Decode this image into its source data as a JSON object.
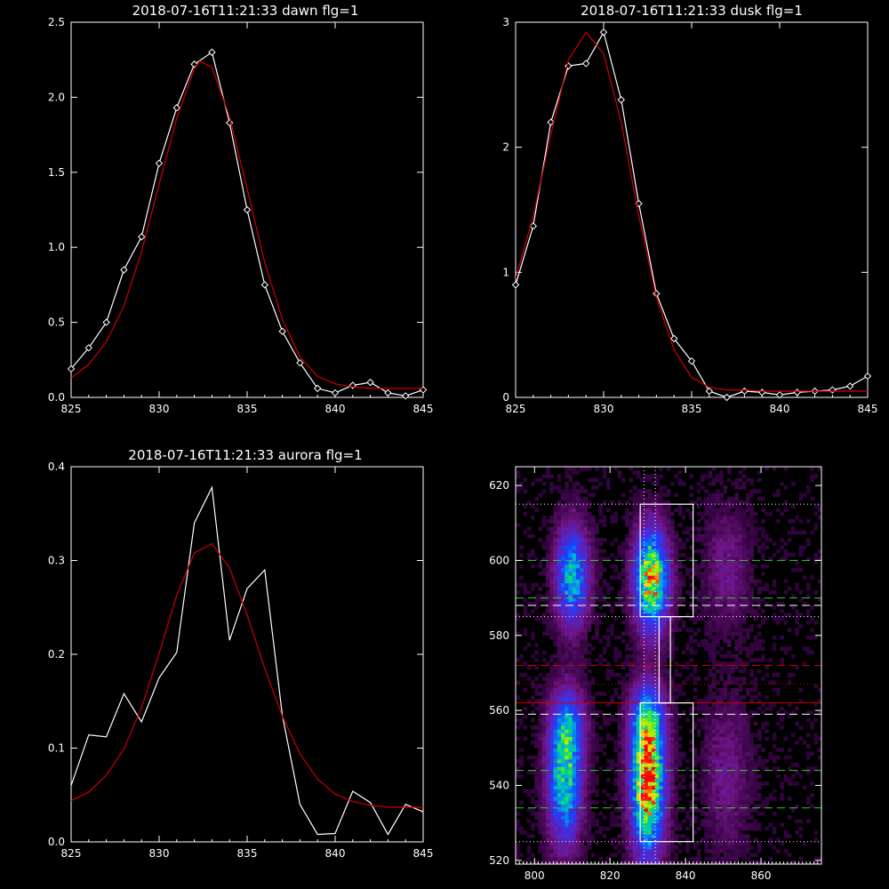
{
  "colors": {
    "background": "#000000",
    "axes": "#ffffff",
    "data": "#ffffff",
    "fit": "#cc0000"
  },
  "chart_data": [
    {
      "type": "line",
      "title": "2018-07-16T11:21:33 dawn flg=1",
      "xlim": [
        825,
        845
      ],
      "ylim": [
        0,
        2.5
      ],
      "xticks": [
        825,
        830,
        835,
        840,
        845
      ],
      "yticks": [
        0.0,
        0.5,
        1.0,
        1.5,
        2.0,
        2.5
      ],
      "ytick_labels": [
        "0.0",
        "0.5",
        "1.0",
        "1.5",
        "2.0",
        "2.5"
      ],
      "series": [
        {
          "role": "data",
          "marker": "diamond",
          "x": [
            825,
            826,
            827,
            828,
            829,
            830,
            831,
            832,
            833,
            834,
            835,
            836,
            837,
            838,
            839,
            840,
            841,
            842,
            843,
            844,
            845
          ],
          "y": [
            0.19,
            0.33,
            0.5,
            0.85,
            1.07,
            1.56,
            1.93,
            2.22,
            2.3,
            1.83,
            1.25,
            0.75,
            0.44,
            0.23,
            0.06,
            0.03,
            0.08,
            0.1,
            0.03,
            0.01,
            0.05
          ]
        },
        {
          "role": "fit",
          "x": [
            825,
            826,
            827,
            828,
            829,
            830,
            831,
            832,
            832.3,
            833,
            834,
            835,
            836,
            837,
            838,
            839,
            840,
            841,
            842,
            843,
            844,
            845
          ],
          "y": [
            0.13,
            0.22,
            0.37,
            0.61,
            0.97,
            1.42,
            1.86,
            2.19,
            2.24,
            2.2,
            1.87,
            1.39,
            0.9,
            0.52,
            0.27,
            0.14,
            0.09,
            0.07,
            0.06,
            0.06,
            0.06,
            0.06
          ]
        }
      ]
    },
    {
      "type": "line",
      "title": "2018-07-16T11:21:33 dusk flg=1",
      "xlim": [
        825,
        845
      ],
      "ylim": [
        0,
        3
      ],
      "xticks": [
        825,
        830,
        835,
        840,
        845
      ],
      "yticks": [
        0,
        1,
        2,
        3
      ],
      "ytick_labels": [
        "0",
        "1",
        "2",
        "3"
      ],
      "series": [
        {
          "role": "data",
          "marker": "diamond",
          "x": [
            825,
            826,
            827,
            828,
            829,
            830,
            831,
            832,
            833,
            834,
            835,
            836,
            837,
            838,
            839,
            840,
            841,
            842,
            843,
            844,
            845
          ],
          "y": [
            0.9,
            1.37,
            2.2,
            2.65,
            2.67,
            2.92,
            2.38,
            1.55,
            0.83,
            0.47,
            0.29,
            0.05,
            0.0,
            0.05,
            0.04,
            0.02,
            0.04,
            0.05,
            0.06,
            0.09,
            0.17
          ]
        },
        {
          "role": "fit",
          "x": [
            825,
            826,
            827,
            828,
            829,
            830,
            831,
            832,
            833,
            834,
            835,
            836,
            837,
            838,
            839,
            840,
            841,
            842,
            843,
            844,
            845
          ],
          "y": [
            0.95,
            1.45,
            2.1,
            2.7,
            2.92,
            2.75,
            2.2,
            1.45,
            0.8,
            0.38,
            0.16,
            0.08,
            0.06,
            0.06,
            0.05,
            0.05,
            0.05,
            0.05,
            0.05,
            0.05,
            0.05
          ]
        }
      ]
    },
    {
      "type": "line",
      "title": "2018-07-16T11:21:33 aurora flg=1",
      "xlim": [
        825,
        845
      ],
      "ylim": [
        0,
        0.4
      ],
      "xticks": [
        825,
        830,
        835,
        840,
        845
      ],
      "yticks": [
        0.0,
        0.1,
        0.2,
        0.3,
        0.4
      ],
      "ytick_labels": [
        "0.0",
        "0.1",
        "0.2",
        "0.3",
        "0.4"
      ],
      "series": [
        {
          "role": "data",
          "marker": "none",
          "x": [
            825,
            826,
            827,
            828,
            829,
            830,
            831,
            832,
            833,
            834,
            835,
            836,
            837,
            838,
            839,
            840,
            841,
            842,
            843,
            844,
            845
          ],
          "y": [
            0.06,
            0.114,
            0.112,
            0.158,
            0.128,
            0.175,
            0.202,
            0.34,
            0.378,
            0.215,
            0.27,
            0.29,
            0.135,
            0.04,
            0.008,
            0.009,
            0.054,
            0.042,
            0.008,
            0.04,
            0.032
          ]
        },
        {
          "role": "fit",
          "x": [
            825,
            826,
            827,
            828,
            829,
            830,
            831,
            832,
            833,
            834,
            835,
            836,
            837,
            838,
            839,
            840,
            841,
            842,
            843,
            844,
            845
          ],
          "y": [
            0.044,
            0.053,
            0.071,
            0.099,
            0.143,
            0.201,
            0.263,
            0.308,
            0.318,
            0.292,
            0.242,
            0.185,
            0.134,
            0.094,
            0.067,
            0.051,
            0.043,
            0.039,
            0.037,
            0.037,
            0.037
          ]
        }
      ]
    },
    {
      "type": "heatmap",
      "title": "",
      "xlim": [
        795,
        876
      ],
      "ylim": [
        519,
        625
      ],
      "xticks": [
        800,
        820,
        840,
        860
      ],
      "yticks": [
        520,
        540,
        560,
        580,
        600,
        620
      ],
      "colormap": "rainbow (purple-blue-green-yellow-red)",
      "hotspots": [
        {
          "x": 810,
          "y": 596,
          "sx": 3,
          "sy": 9,
          "amp": 0.55
        },
        {
          "x": 808,
          "y": 542,
          "sx": 3,
          "sy": 12,
          "amp": 0.6
        },
        {
          "x": 809,
          "y": 556,
          "sx": 3,
          "sy": 7,
          "amp": 0.3
        },
        {
          "x": 831,
          "y": 595,
          "sx": 3,
          "sy": 9,
          "amp": 0.85
        },
        {
          "x": 830,
          "y": 541,
          "sx": 3,
          "sy": 13,
          "amp": 0.95
        },
        {
          "x": 830,
          "y": 558,
          "sx": 3,
          "sy": 6,
          "amp": 0.35
        },
        {
          "x": 851,
          "y": 598,
          "sx": 4,
          "sy": 11,
          "amp": 0.14
        },
        {
          "x": 851,
          "y": 543,
          "sx": 4,
          "sy": 13,
          "amp": 0.14
        }
      ],
      "peak_markers": [
        {
          "x": 832,
          "y": 591
        },
        {
          "x": 829,
          "y": 540
        }
      ],
      "hlines": [
        {
          "y": 615,
          "style": "dotted",
          "color": "#ffffff"
        },
        {
          "y": 600,
          "style": "dashed",
          "color": "#33cc33"
        },
        {
          "y": 590,
          "style": "dashed",
          "color": "#33cc33"
        },
        {
          "y": 588,
          "style": "dashed",
          "color": "#ffffff"
        },
        {
          "y": 585,
          "style": "dotted",
          "color": "#ffffff"
        },
        {
          "y": 572,
          "style": "dashed",
          "color": "#cc0000"
        },
        {
          "y": 567,
          "style": "dotted",
          "color": "#cc0000"
        },
        {
          "y": 562,
          "style": "solid",
          "color": "#cc0000"
        },
        {
          "y": 559,
          "style": "dashed",
          "color": "#ffffff"
        },
        {
          "y": 544,
          "style": "dashed",
          "color": "#33cc33"
        },
        {
          "y": 534,
          "style": "dashed",
          "color": "#33cc33"
        },
        {
          "y": 525,
          "style": "dotted",
          "color": "#ffffff"
        }
      ],
      "vlines": [
        {
          "x": 829,
          "style": "dotted",
          "color": "#ffffff"
        },
        {
          "x": 832,
          "style": "dotted",
          "color": "#ffffff"
        }
      ],
      "boxes": [
        {
          "x0": 828,
          "x1": 842,
          "y0": 585,
          "y1": 615
        },
        {
          "x0": 833,
          "x1": 836,
          "y0": 562,
          "y1": 585
        },
        {
          "x0": 828,
          "x1": 842,
          "y0": 525,
          "y1": 562
        }
      ]
    }
  ]
}
